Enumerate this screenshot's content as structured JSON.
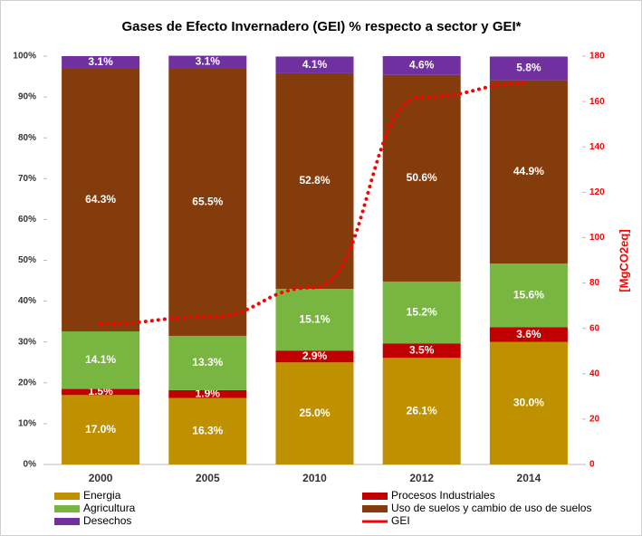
{
  "chart_data": {
    "type": "bar",
    "stacked": true,
    "title": "Gases de Efecto Invernadero (GEI) % respecto a sector y GEI*",
    "categories": [
      "2000",
      "2005",
      "2010",
      "2012",
      "2014"
    ],
    "series": [
      {
        "name": "Energia",
        "color": "#bf9000",
        "values": [
          17.0,
          16.3,
          25.0,
          26.1,
          30.0
        ],
        "value_labels": [
          "17.0%",
          "16.3%",
          "25.0%",
          "26.1%",
          "30.0%"
        ]
      },
      {
        "name": "Procesos Industriales",
        "color": "#c00000",
        "values": [
          1.5,
          1.9,
          2.9,
          3.5,
          3.6
        ],
        "value_labels": [
          "1.5%",
          "1.9%",
          "2.9%",
          "3.5%",
          "3.6%"
        ]
      },
      {
        "name": "Agricultura",
        "color": "#78b641",
        "values": [
          14.1,
          13.3,
          15.1,
          15.2,
          15.6
        ],
        "value_labels": [
          "14.1%",
          "13.3%",
          "15.1%",
          "15.2%",
          "15.6%"
        ]
      },
      {
        "name": "Uso de suelos y cambio de uso de suelos",
        "color": "#843c0c",
        "values": [
          64.3,
          65.5,
          52.8,
          50.6,
          44.9
        ],
        "value_labels": [
          "64.3%",
          "65.5%",
          "52.8%",
          "50.6%",
          "44.9%"
        ]
      },
      {
        "name": "Desechos",
        "color": "#7030a0",
        "values": [
          3.1,
          3.1,
          4.1,
          4.6,
          5.8
        ],
        "value_labels": [
          "3.1%",
          "3.1%",
          "4.1%",
          "4.6%",
          "5.8%"
        ]
      },
      {
        "name": "GEI",
        "color": "#ff0000",
        "type": "line",
        "axis": "y2",
        "values": [
          62,
          65,
          78,
          162,
          168
        ]
      }
    ],
    "ylim": [
      0,
      100
    ],
    "yticks": [
      {
        "value": 0,
        "label": "0%"
      },
      {
        "value": 10,
        "label": "10%"
      },
      {
        "value": 20,
        "label": "20%"
      },
      {
        "value": 30,
        "label": "30%"
      },
      {
        "value": 40,
        "label": "40%"
      },
      {
        "value": 50,
        "label": "50%"
      },
      {
        "value": 60,
        "label": "60%"
      },
      {
        "value": 70,
        "label": "70%"
      },
      {
        "value": 80,
        "label": "80%"
      },
      {
        "value": 90,
        "label": "90%"
      },
      {
        "value": 100,
        "label": "100%"
      }
    ],
    "y2label": "[MgCO2eq]",
    "y2lim": [
      0,
      180
    ],
    "y2ticks": [
      0,
      20,
      40,
      60,
      80,
      100,
      120,
      140,
      160,
      180
    ],
    "grid": false
  }
}
